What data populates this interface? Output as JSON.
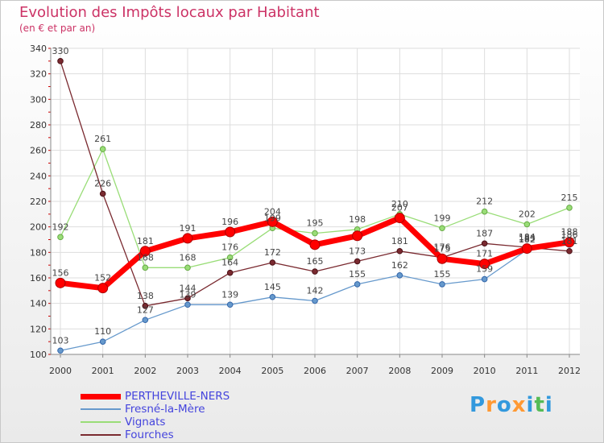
{
  "title": "Evolution des Impôts locaux par Habitant",
  "subtitle": "(en € et par an)",
  "logo": [
    "P",
    "r",
    "o",
    "x",
    "i",
    "t",
    "i"
  ],
  "logo_colors": [
    "#3399dd",
    "#ff9933",
    "#3399dd",
    "#ff9933",
    "#3399dd",
    "#55bb55",
    "#3399dd"
  ],
  "chart_data": {
    "type": "line",
    "title": "Evolution des Impôts locaux par Habitant",
    "subtitle": "(en € et par an)",
    "xlabel": "",
    "ylabel": "",
    "x": [
      "2000",
      "2001",
      "2002",
      "2003",
      "2004",
      "2005",
      "2006",
      "2007",
      "2008",
      "2009",
      "2010",
      "2011",
      "2012"
    ],
    "ylim": [
      100,
      340
    ],
    "yticks": [
      100,
      120,
      140,
      160,
      180,
      200,
      220,
      240,
      260,
      280,
      300,
      320,
      340
    ],
    "legend_position": "bottom-left",
    "series": [
      {
        "name": "PERTHEVILLE-NERS",
        "color": "#ff0000",
        "values": [
          156,
          152,
          181,
          191,
          196,
          204,
          186,
          193,
          207,
          175,
          171,
          183,
          188
        ],
        "labels": [
          "156",
          "152",
          "181",
          "191",
          "196",
          "204",
          "",
          "",
          "207",
          "175",
          "171",
          "183",
          "188"
        ]
      },
      {
        "name": "Fresné-la-Mère",
        "color": "#6699cc",
        "values": [
          103,
          110,
          127,
          139,
          139,
          145,
          142,
          155,
          162,
          155,
          159,
          182,
          186
        ],
        "labels": [
          "103",
          "110",
          "127",
          "139",
          "139",
          "145",
          "142",
          "155",
          "162",
          "155",
          "159",
          "182",
          "186"
        ]
      },
      {
        "name": "Vignats",
        "color": "#99dd77",
        "values": [
          192,
          261,
          168,
          168,
          176,
          199,
          195,
          198,
          210,
          199,
          212,
          202,
          215
        ],
        "labels": [
          "192",
          "261",
          "168",
          "168",
          "176",
          "199",
          "195",
          "198",
          "210",
          "199",
          "212",
          "202",
          "215"
        ]
      },
      {
        "name": "Fourches",
        "color": "#7a2a30",
        "values": [
          330,
          226,
          138,
          144,
          164,
          172,
          165,
          173,
          181,
          176,
          187,
          184,
          181
        ],
        "labels": [
          "330",
          "226",
          "138",
          "144",
          "164",
          "172",
          "165",
          "173",
          "181",
          "176",
          "187",
          "184",
          "181"
        ]
      }
    ]
  }
}
